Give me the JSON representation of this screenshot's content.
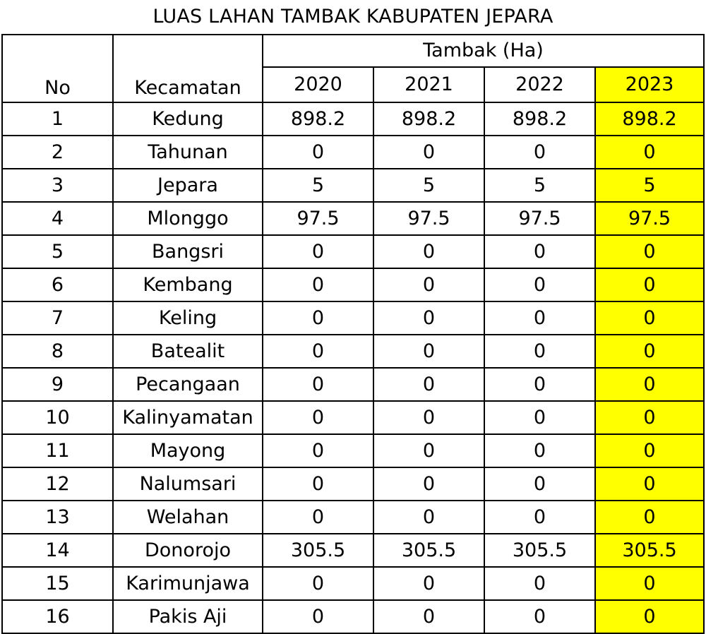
{
  "title": "LUAS LAHAN TAMBAK KABUPATEN JEPARA",
  "table": {
    "col_no": "No",
    "col_kecamatan": "Kecamatan",
    "group_header": "Tambak (Ha)",
    "years": [
      "2020",
      "2021",
      "2022",
      "2023"
    ],
    "highlight_color": "#ffff00",
    "rows": [
      {
        "no": "1",
        "kecamatan": "Kedung",
        "v2020": "898.2",
        "v2021": "898.2",
        "v2022": "898.2",
        "v2023": "898.2"
      },
      {
        "no": "2",
        "kecamatan": "Tahunan",
        "v2020": "0",
        "v2021": "0",
        "v2022": "0",
        "v2023": "0"
      },
      {
        "no": "3",
        "kecamatan": "Jepara",
        "v2020": "5",
        "v2021": "5",
        "v2022": "5",
        "v2023": "5"
      },
      {
        "no": "4",
        "kecamatan": "Mlonggo",
        "v2020": "97.5",
        "v2021": "97.5",
        "v2022": "97.5",
        "v2023": "97.5"
      },
      {
        "no": "5",
        "kecamatan": "Bangsri",
        "v2020": "0",
        "v2021": "0",
        "v2022": "0",
        "v2023": "0"
      },
      {
        "no": "6",
        "kecamatan": "Kembang",
        "v2020": "0",
        "v2021": "0",
        "v2022": "0",
        "v2023": "0"
      },
      {
        "no": "7",
        "kecamatan": "Keling",
        "v2020": "0",
        "v2021": "0",
        "v2022": "0",
        "v2023": "0"
      },
      {
        "no": "8",
        "kecamatan": "Batealit",
        "v2020": "0",
        "v2021": "0",
        "v2022": "0",
        "v2023": "0"
      },
      {
        "no": "9",
        "kecamatan": "Pecangaan",
        "v2020": "0",
        "v2021": "0",
        "v2022": "0",
        "v2023": "0"
      },
      {
        "no": "10",
        "kecamatan": "Kalinyamatan",
        "v2020": "0",
        "v2021": "0",
        "v2022": "0",
        "v2023": "0"
      },
      {
        "no": "11",
        "kecamatan": "Mayong",
        "v2020": "0",
        "v2021": "0",
        "v2022": "0",
        "v2023": "0"
      },
      {
        "no": "12",
        "kecamatan": "Nalumsari",
        "v2020": "0",
        "v2021": "0",
        "v2022": "0",
        "v2023": "0"
      },
      {
        "no": "13",
        "kecamatan": "Welahan",
        "v2020": "0",
        "v2021": "0",
        "v2022": "0",
        "v2023": "0"
      },
      {
        "no": "14",
        "kecamatan": "Donorojo",
        "v2020": "305.5",
        "v2021": "305.5",
        "v2022": "305.5",
        "v2023": "305.5"
      },
      {
        "no": "15",
        "kecamatan": "Karimunjawa",
        "v2020": "0",
        "v2021": "0",
        "v2022": "0",
        "v2023": "0"
      },
      {
        "no": "16",
        "kecamatan": "Pakis Aji",
        "v2020": "0",
        "v2021": "0",
        "v2022": "0",
        "v2023": "0"
      }
    ]
  }
}
